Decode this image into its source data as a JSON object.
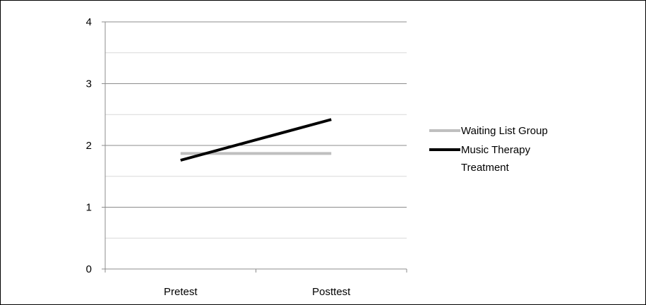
{
  "chart_data": {
    "type": "line",
    "categories": [
      "Pretest",
      "Posttest"
    ],
    "series": [
      {
        "name": "Waiting List Group",
        "values": [
          1.87,
          1.87
        ],
        "color": "#bfbfbf"
      },
      {
        "name": "Music Therapy Treatment",
        "values": [
          1.76,
          2.42
        ],
        "color": "#000000",
        "legend_lines": [
          "Music Therapy",
          "Treatment"
        ]
      }
    ],
    "ylim": [
      0,
      4
    ],
    "yticks": [
      0,
      1,
      2,
      3,
      4
    ],
    "ytick_labels": [
      "0",
      "1",
      "2",
      "3",
      "4"
    ],
    "minor_gridlines": true,
    "grid": true,
    "legend": "right",
    "title": "",
    "xlabel": "",
    "ylabel": ""
  }
}
